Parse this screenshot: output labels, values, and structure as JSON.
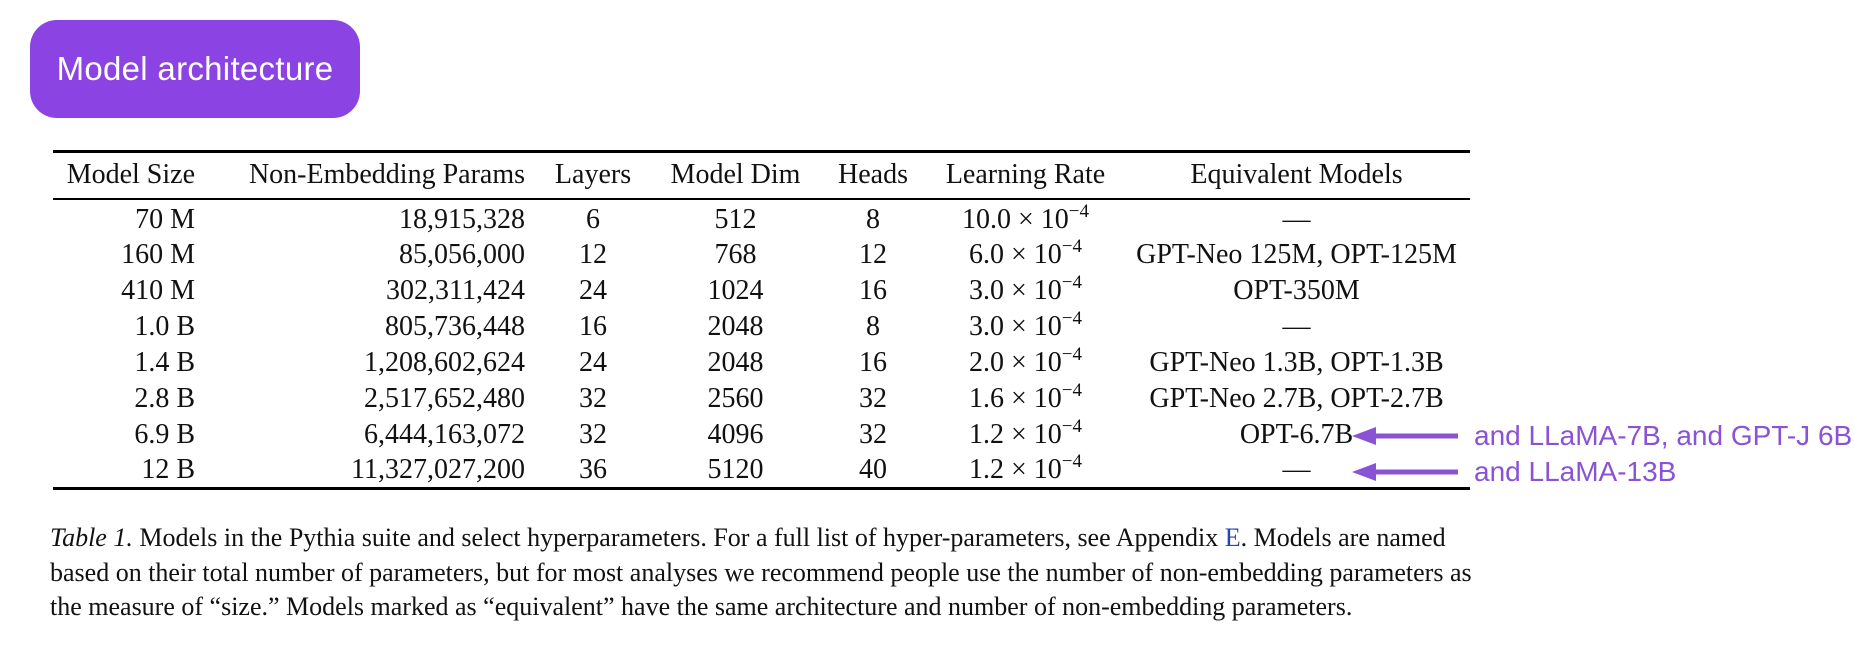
{
  "badge": {
    "label": "Model architecture",
    "background": "#8B44E3",
    "text_color": "#FFFFFF"
  },
  "table": {
    "columns": [
      "Model Size",
      "Non-Embedding Params",
      "Layers",
      "Model Dim",
      "Heads",
      "Learning Rate",
      "Equivalent Models"
    ],
    "rows": [
      {
        "model_size": "70 M",
        "params": "18,915,328",
        "layers": "6",
        "model_dim": "512",
        "heads": "8",
        "lr_base": "10.0",
        "lr_exp": "−4",
        "equivalent": "—"
      },
      {
        "model_size": "160 M",
        "params": "85,056,000",
        "layers": "12",
        "model_dim": "768",
        "heads": "12",
        "lr_base": "6.0",
        "lr_exp": "−4",
        "equivalent": "GPT-Neo 125M, OPT-125M"
      },
      {
        "model_size": "410 M",
        "params": "302,311,424",
        "layers": "24",
        "model_dim": "1024",
        "heads": "16",
        "lr_base": "3.0",
        "lr_exp": "−4",
        "equivalent": "OPT-350M"
      },
      {
        "model_size": "1.0 B",
        "params": "805,736,448",
        "layers": "16",
        "model_dim": "2048",
        "heads": "8",
        "lr_base": "3.0",
        "lr_exp": "−4",
        "equivalent": "—"
      },
      {
        "model_size": "1.4 B",
        "params": "1,208,602,624",
        "layers": "24",
        "model_dim": "2048",
        "heads": "16",
        "lr_base": "2.0",
        "lr_exp": "−4",
        "equivalent": "GPT-Neo 1.3B, OPT-1.3B"
      },
      {
        "model_size": "2.8 B",
        "params": "2,517,652,480",
        "layers": "32",
        "model_dim": "2560",
        "heads": "32",
        "lr_base": "1.6",
        "lr_exp": "−4",
        "equivalent": "GPT-Neo 2.7B, OPT-2.7B"
      },
      {
        "model_size": "6.9 B",
        "params": "6,444,163,072",
        "layers": "32",
        "model_dim": "4096",
        "heads": "32",
        "lr_base": "1.2",
        "lr_exp": "−4",
        "equivalent": "OPT-6.7B"
      },
      {
        "model_size": "12 B",
        "params": "11,327,027,200",
        "layers": "36",
        "model_dim": "5120",
        "heads": "40",
        "lr_base": "1.2",
        "lr_exp": "−4",
        "equivalent": "—"
      }
    ],
    "lr_times_prefix": " × 10"
  },
  "annotations": [
    {
      "text": "and LLaMA-7B, and GPT-J 6B",
      "points_to_row_index": 6,
      "color": "#8A52D4"
    },
    {
      "text": "and LLaMA-13B",
      "points_to_row_index": 7,
      "color": "#8A52D4"
    }
  ],
  "caption": {
    "label": "Table 1.",
    "line1_pre": " Models in the Pythia suite and select hyperparameters. For a full list of hyper-parameters, see Appendix ",
    "line1_link": "E",
    "line1_post": ". Models are named",
    "line2": "based on their total number of parameters, but for most analyses we recommend people use the number of non-embedding parameters as",
    "line3": "the measure of “size.” Models marked as “equivalent” have the same architecture and number of non-embedding parameters.",
    "link_color": "#2745BB"
  }
}
